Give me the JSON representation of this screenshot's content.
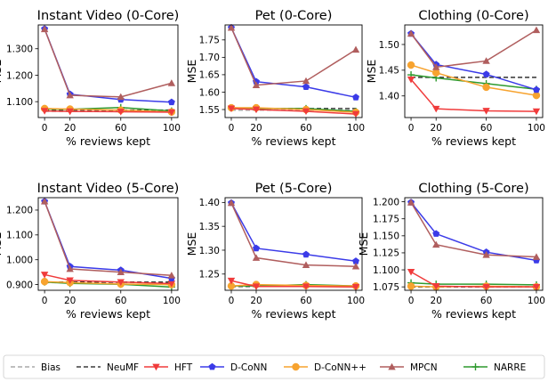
{
  "chart_data": [
    {
      "type": "line",
      "title": "Instant Video (0-Core)",
      "xlabel": "% reviews kept",
      "ylabel": "MSE",
      "x": [
        0,
        20,
        60,
        100
      ],
      "xticks": [
        "0",
        "20",
        "60",
        "100"
      ],
      "yticks": [
        1.1,
        1.2,
        1.3
      ],
      "ylim": [
        1.04,
        1.39
      ],
      "series": [
        {
          "name": "Bias",
          "values": [
            1.063,
            1.063,
            1.063,
            1.063
          ]
        },
        {
          "name": "NeuMF",
          "values": [
            1.068,
            1.068,
            1.068,
            1.068
          ]
        },
        {
          "name": "HFT",
          "values": [
            1.065,
            1.063,
            1.062,
            1.06
          ]
        },
        {
          "name": "D-CoNN",
          "values": [
            1.375,
            1.128,
            1.108,
            1.098
          ]
        },
        {
          "name": "D-CoNN++",
          "values": [
            1.074,
            1.072,
            1.068,
            1.061
          ]
        },
        {
          "name": "MPCN",
          "values": [
            1.374,
            1.124,
            1.118,
            1.17
          ]
        },
        {
          "name": "NARRE",
          "values": [
            1.072,
            1.071,
            1.078,
            1.065
          ]
        }
      ]
    },
    {
      "type": "line",
      "title": "Pet (0-Core)",
      "xlabel": "% reviews kept",
      "ylabel": "MSE",
      "x": [
        0,
        20,
        60,
        100
      ],
      "xticks": [
        "0",
        "20",
        "60",
        "100"
      ],
      "yticks": [
        1.55,
        1.6,
        1.65,
        1.7,
        1.75
      ],
      "ylim": [
        1.527,
        1.793
      ],
      "series": [
        {
          "name": "Bias",
          "values": [
            1.548,
            1.548,
            1.548,
            1.548
          ]
        },
        {
          "name": "NeuMF",
          "values": [
            1.553,
            1.553,
            1.553,
            1.553
          ]
        },
        {
          "name": "HFT",
          "values": [
            1.553,
            1.55,
            1.545,
            1.537
          ]
        },
        {
          "name": "D-CoNN",
          "values": [
            1.785,
            1.63,
            1.615,
            1.585
          ]
        },
        {
          "name": "D-CoNN++",
          "values": [
            1.555,
            1.555,
            1.55,
            1.542
          ]
        },
        {
          "name": "MPCN",
          "values": [
            1.785,
            1.62,
            1.632,
            1.722
          ]
        },
        {
          "name": "NARRE",
          "values": [
            1.555,
            1.553,
            1.553,
            1.545
          ]
        }
      ]
    },
    {
      "type": "line",
      "title": "Clothing (0-Core)",
      "xlabel": "% reviews kept",
      "ylabel": "MSE",
      "x": [
        0,
        20,
        60,
        100
      ],
      "xticks": [
        "0",
        "20",
        "60",
        "100"
      ],
      "yticks": [
        1.4,
        1.45,
        1.5
      ],
      "ylim": [
        1.358,
        1.538
      ],
      "series": [
        {
          "name": "Bias",
          "values": [
            1.436,
            1.436,
            1.436,
            1.436
          ]
        },
        {
          "name": "NeuMF",
          "values": [
            1.436,
            1.436,
            1.436,
            1.436
          ]
        },
        {
          "name": "HFT",
          "values": [
            1.432,
            1.375,
            1.371,
            1.37
          ]
        },
        {
          "name": "D-CoNN",
          "values": [
            1.521,
            1.461,
            1.442,
            1.412
          ]
        },
        {
          "name": "D-CoNN++",
          "values": [
            1.46,
            1.445,
            1.417,
            1.401
          ]
        },
        {
          "name": "MPCN",
          "values": [
            1.521,
            1.456,
            1.468,
            1.528
          ]
        },
        {
          "name": "NARRE",
          "values": [
            1.441,
            1.435,
            1.424,
            1.413
          ]
        }
      ]
    },
    {
      "type": "line",
      "title": "Instant Video (5-Core)",
      "xlabel": "% reviews kept",
      "ylabel": "MSE",
      "x": [
        0,
        20,
        60,
        100
      ],
      "xticks": [
        "0",
        "20",
        "60",
        "100"
      ],
      "yticks": [
        0.9,
        1.0,
        1.1,
        1.2
      ],
      "ylim": [
        0.877,
        1.25
      ],
      "series": [
        {
          "name": "Bias",
          "values": [
            0.908,
            0.908,
            0.908,
            0.908
          ]
        },
        {
          "name": "NeuMF",
          "values": [
            0.91,
            0.91,
            0.91,
            0.91
          ]
        },
        {
          "name": "HFT",
          "values": [
            0.94,
            0.917,
            0.91,
            0.904
          ]
        },
        {
          "name": "D-CoNN",
          "values": [
            1.235,
            0.973,
            0.958,
            0.925
          ]
        },
        {
          "name": "D-CoNN++",
          "values": [
            0.912,
            0.908,
            0.902,
            0.9
          ]
        },
        {
          "name": "MPCN",
          "values": [
            1.235,
            0.963,
            0.95,
            0.937
          ]
        },
        {
          "name": "NARRE",
          "values": [
            0.91,
            0.905,
            0.901,
            0.89
          ]
        }
      ]
    },
    {
      "type": "line",
      "title": "Pet (5-Core)",
      "xlabel": "% reviews kept",
      "ylabel": "MSE",
      "x": [
        0,
        20,
        60,
        100
      ],
      "xticks": [
        "0",
        "20",
        "60",
        "100"
      ],
      "yticks": [
        1.25,
        1.3,
        1.35,
        1.4
      ],
      "ylim": [
        1.216,
        1.41
      ],
      "series": [
        {
          "name": "Bias",
          "values": [
            1.224,
            1.224,
            1.224,
            1.224
          ]
        },
        {
          "name": "NeuMF",
          "values": [
            1.224,
            1.224,
            1.224,
            1.224
          ]
        },
        {
          "name": "HFT",
          "values": [
            1.236,
            1.224,
            1.224,
            1.223
          ]
        },
        {
          "name": "D-CoNN",
          "values": [
            1.399,
            1.304,
            1.291,
            1.277
          ]
        },
        {
          "name": "D-CoNN++",
          "values": [
            1.225,
            1.228,
            1.226,
            1.225
          ]
        },
        {
          "name": "MPCN",
          "values": [
            1.399,
            1.284,
            1.269,
            1.266
          ]
        },
        {
          "name": "NARRE",
          "values": [
            1.225,
            1.225,
            1.228,
            1.225
          ]
        }
      ]
    },
    {
      "type": "line",
      "title": "Clothing (5-Core)",
      "xlabel": "% reviews kept",
      "ylabel": "MSE",
      "x": [
        0,
        20,
        60,
        100
      ],
      "xticks": [
        "0",
        "20",
        "60",
        "100"
      ],
      "yticks": [
        1.075,
        1.1,
        1.125,
        1.15,
        1.175,
        1.2
      ],
      "ylim": [
        1.07,
        1.206
      ],
      "series": [
        {
          "name": "Bias",
          "values": [
            1.075,
            1.075,
            1.075,
            1.075
          ]
        },
        {
          "name": "NeuMF",
          "values": [
            1.075,
            1.075,
            1.075,
            1.075
          ]
        },
        {
          "name": "HFT",
          "values": [
            1.097,
            1.076,
            1.075,
            1.075
          ]
        },
        {
          "name": "D-CoNN",
          "values": [
            1.199,
            1.153,
            1.126,
            1.114
          ]
        },
        {
          "name": "D-CoNN++",
          "values": [
            1.076,
            1.075,
            1.076,
            1.075
          ]
        },
        {
          "name": "MPCN",
          "values": [
            1.199,
            1.137,
            1.122,
            1.119
          ]
        },
        {
          "name": "NARRE",
          "values": [
            1.081,
            1.079,
            1.079,
            1.078
          ]
        }
      ]
    }
  ],
  "legend": [
    {
      "name": "Bias",
      "color": "#a9a9a9",
      "style": "dashed",
      "marker": "none"
    },
    {
      "name": "NeuMF",
      "color": "#3d3d3d",
      "style": "dashed",
      "marker": "none"
    },
    {
      "name": "HFT",
      "color": "#f03b3b",
      "style": "solid",
      "marker": "triangle-down"
    },
    {
      "name": "D-CoNN",
      "color": "#3b3be8",
      "style": "solid",
      "marker": "pentagon"
    },
    {
      "name": "D-CoNN++",
      "color": "#f7a32f",
      "style": "solid",
      "marker": "circle"
    },
    {
      "name": "MPCN",
      "color": "#b05e5e",
      "style": "solid",
      "marker": "triangle-up"
    },
    {
      "name": "NARRE",
      "color": "#2e9a2e",
      "style": "solid",
      "marker": "plus"
    }
  ]
}
